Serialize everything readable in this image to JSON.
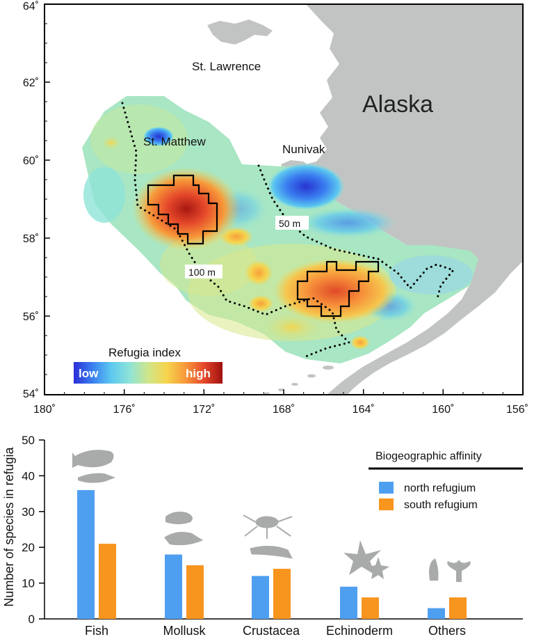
{
  "map": {
    "lat_labels": [
      "64˚",
      "62˚",
      "60˚",
      "58˚",
      "56˚",
      "54˚"
    ],
    "lon_labels": [
      "180˚",
      "176˚",
      "172˚",
      "168˚",
      "164˚",
      "160˚",
      "156˚"
    ],
    "places": {
      "st_lawrence": "St. Lawrence",
      "alaska": "Alaska",
      "st_matthew": "St. Matthew",
      "nunivak": "Nunivak"
    },
    "isobaths": {
      "shallow": "50 m",
      "deep": "100 m"
    },
    "colorbar": {
      "title": "Refugia index",
      "low": "low",
      "high": "high",
      "colors": [
        "#2b2fd6",
        "#3a7ef0",
        "#5cc8f0",
        "#8ee3d8",
        "#cfe68a",
        "#f6d44d",
        "#f79a3a",
        "#e5482a",
        "#a01010"
      ]
    },
    "colors": {
      "land": "#c2c4c4",
      "sea": "#ffffff",
      "frame": "#000000"
    }
  },
  "chart_data": {
    "type": "bar",
    "categories": [
      "Fish",
      "Mollusk",
      "Crustacea",
      "Echinoderm",
      "Others"
    ],
    "series": [
      {
        "name": "north refugium",
        "values": [
          36,
          18,
          12,
          9,
          3
        ],
        "color": "#4f9ff0"
      },
      {
        "name": "south refugium",
        "values": [
          21,
          15,
          14,
          6,
          6
        ],
        "color": "#f7951e"
      }
    ],
    "ylabel": "Number of species in refugia",
    "yticks": [
      "0",
      "10",
      "20",
      "30",
      "40",
      "50"
    ],
    "ylim": [
      0,
      50
    ],
    "legend_title": "Biogeographic affinity",
    "legend_position": "top-right",
    "grid": false
  }
}
